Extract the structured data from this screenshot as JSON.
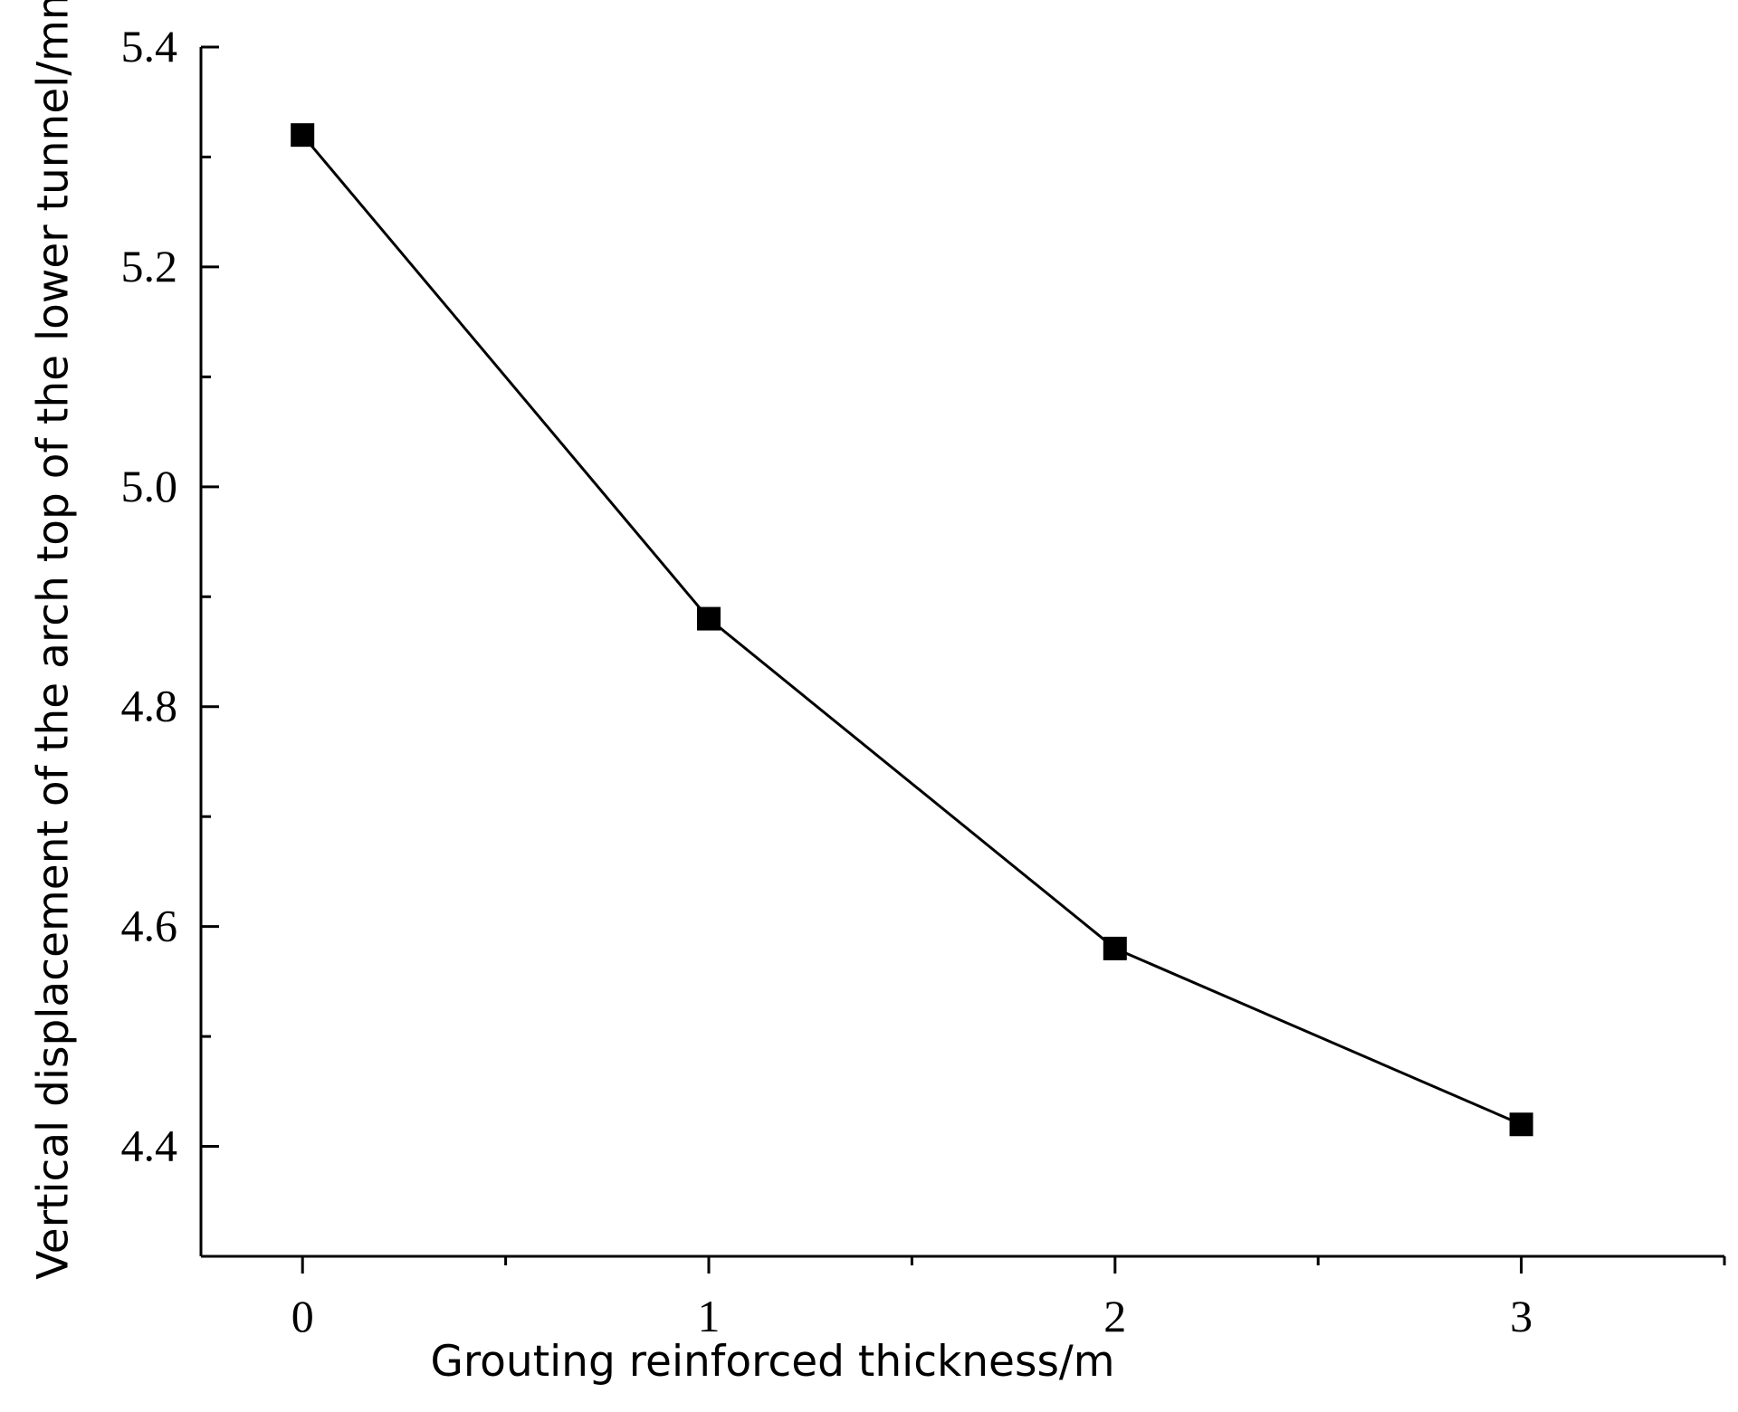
{
  "chart_data": {
    "type": "line",
    "title": "",
    "xlabel": "Grouting reinforced thickness/m",
    "ylabel": "Vertical displacement of the arch top of the lower tunnel/mm",
    "x": [
      0,
      1,
      2,
      3
    ],
    "x_ticks": [
      "0",
      "1",
      "2",
      "3"
    ],
    "y_ticks": [
      "4.4",
      "4.6",
      "4.8",
      "5.0",
      "5.2",
      "5.4"
    ],
    "xlim": [
      -0.25,
      3.5
    ],
    "ylim": [
      4.3,
      5.4
    ],
    "grid": false,
    "series": [
      {
        "name": "",
        "marker": "square",
        "color": "#000000",
        "values": [
          5.32,
          4.88,
          4.58,
          4.42
        ]
      }
    ]
  }
}
